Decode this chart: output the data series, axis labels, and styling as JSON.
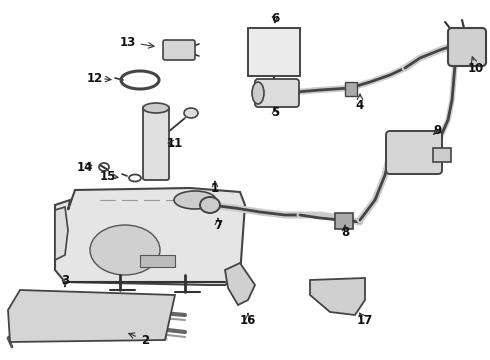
{
  "bg_color": "#ffffff",
  "fig_width": 4.9,
  "fig_height": 3.6,
  "dpi": 100,
  "line_color": "#333333",
  "label_color": "#111111",
  "label_fontsize": 8.5,
  "label_fontweight": "bold",
  "part_fill": "#e8e8e8",
  "part_edge": "#444444"
}
